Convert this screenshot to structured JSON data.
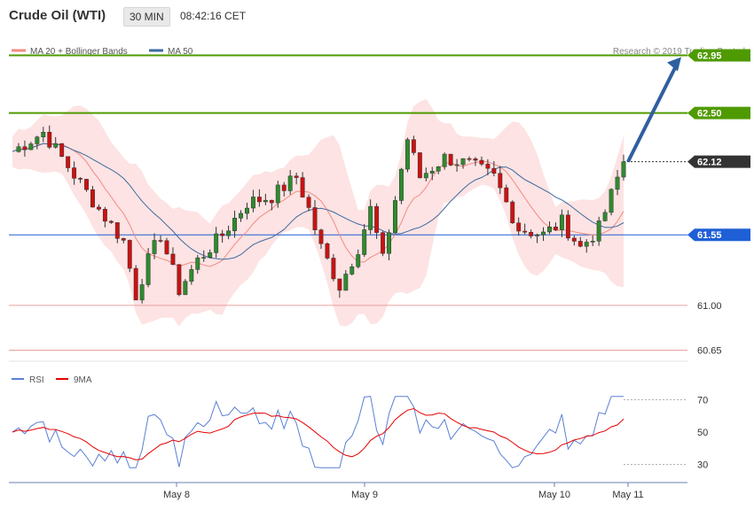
{
  "header": {
    "instrument": "Crude Oil (WTI)",
    "timeframe": "30 MIN",
    "time": "08:42:16 CET"
  },
  "legend": {
    "items": [
      {
        "label": "MA 20 + Bollinger Bands",
        "color": "#f28b82"
      },
      {
        "label": "MA 50",
        "color": "#3d6a9e"
      }
    ],
    "copyright": "Research © 2019 Trading Central"
  },
  "rsi_legend": {
    "items": [
      {
        "label": "RSI",
        "color": "#5b7fd6"
      },
      {
        "label": "9MA",
        "color": "#e60000"
      }
    ]
  },
  "chart_data": [
    {
      "type": "candlestick",
      "ylim": [
        60.55,
        63.05
      ],
      "x_labels": [
        "May 8",
        "May 9",
        "May 10",
        "May 11"
      ],
      "levels": [
        {
          "value": 62.95,
          "label": "62.95",
          "kind": "resistance",
          "color": "#4f9a00"
        },
        {
          "value": 62.5,
          "label": "62.50",
          "kind": "resistance",
          "color": "#4f9a00"
        },
        {
          "value": 62.12,
          "label": "62.12",
          "kind": "last-price",
          "color": "#333333"
        },
        {
          "value": 61.55,
          "label": "61.55",
          "kind": "pivot",
          "color": "#1f5fd6"
        },
        {
          "value": 61.0,
          "label": "61.00",
          "kind": "support",
          "color": "#e8a0a0"
        },
        {
          "value": 60.65,
          "label": "60.65",
          "kind": "support",
          "color": "#e8a0a0"
        }
      ],
      "projection": {
        "from": 62.12,
        "to": 62.95
      },
      "colors": {
        "up": "#2e8b2e",
        "down": "#cc1111",
        "bands_fill": "#fde3e3",
        "ma20": "#f28b82",
        "ma50": "#3d6a9e"
      }
    },
    {
      "type": "line",
      "name": "RSI",
      "ylim": [
        20,
        80
      ],
      "yticks": [
        30,
        50,
        70
      ],
      "series": [
        {
          "name": "RSI",
          "color": "#5b7fd6"
        },
        {
          "name": "9MA",
          "color": "#e60000"
        }
      ]
    }
  ]
}
